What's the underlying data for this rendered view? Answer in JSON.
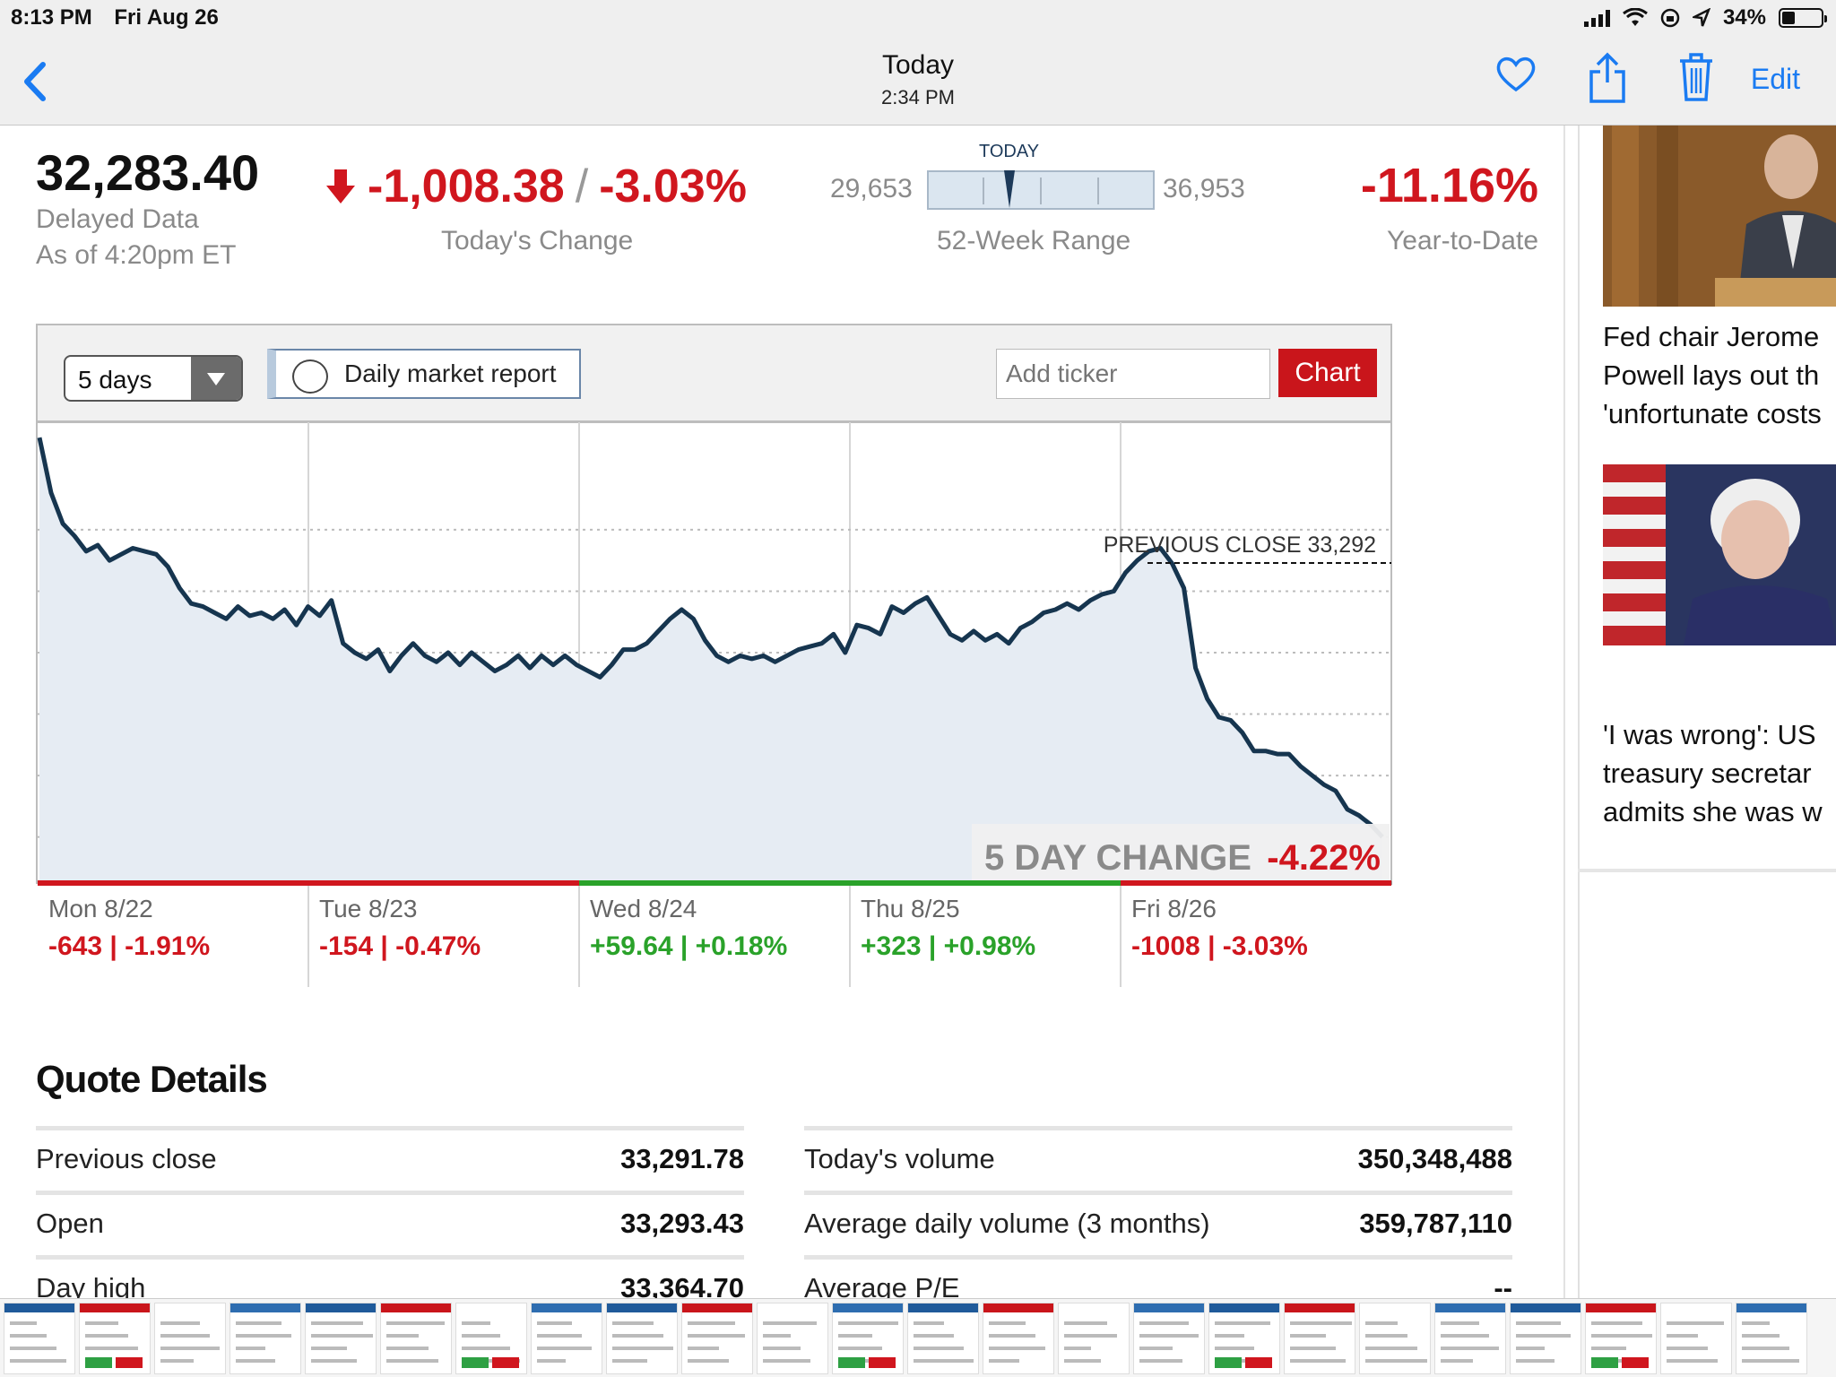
{
  "status_bar": {
    "time": "8:13 PM",
    "date": "Fri Aug 26",
    "battery": "34%"
  },
  "nav": {
    "title": "Today",
    "subtitle": "2:34 PM",
    "edit_label": "Edit"
  },
  "quote": {
    "price": "32,283.40",
    "delayed_label": "Delayed Data",
    "asof_label": "As of 4:20pm ET",
    "change_points": "-1,008.38",
    "change_sep": "/",
    "change_percent": "-3.03%",
    "change_label": "Today's Change",
    "range_low": "29,653",
    "range_high": "36,953",
    "range_today_label": "TODAY",
    "range_label": "52-Week Range",
    "range_today_fraction": 0.36,
    "ytd_value": "-11.16%",
    "ytd_label": "Year-to-Date"
  },
  "toolbar": {
    "period_value": "5 days",
    "report_label": "Daily market report",
    "ticker_placeholder": "Add ticker",
    "chart_button": "Chart"
  },
  "chart_data": {
    "type": "line",
    "y_ticks": [
      "33,400",
      "33,200",
      "33,000",
      "32,800",
      "32,600",
      "32,400"
    ],
    "ylim": [
      32250,
      33750
    ],
    "previous_close_label": "PREVIOUS CLOSE 33,292",
    "previous_close": 33292,
    "five_day_label": "5 DAY CHANGE",
    "five_day_value": "-4.22%",
    "days": [
      {
        "label": "Mon 8/22",
        "change": "-643 | -1.91%",
        "status": "down"
      },
      {
        "label": "Tue 8/23",
        "change": "-154 | -0.47%",
        "status": "down"
      },
      {
        "label": "Wed 8/24",
        "change": "+59.64 | +0.18%",
        "status": "up"
      },
      {
        "label": "Thu 8/25",
        "change": "+323 | +0.98%",
        "status": "up"
      },
      {
        "label": "Fri 8/26",
        "change": "-1008 | -3.03%",
        "status": "down"
      }
    ],
    "series": [
      {
        "values": [
          33700,
          33520,
          33420,
          33380,
          33330,
          33350,
          33300,
          33320,
          33340,
          33330,
          33320,
          33280,
          33210,
          33160,
          33150,
          33130,
          33110,
          33150,
          33120,
          33130,
          33110,
          33140,
          33090,
          33150,
          33120,
          33170,
          33030,
          33000,
          32980,
          33010,
          32940,
          32990,
          33030,
          32990,
          32970,
          33000,
          32960,
          33000,
          32970,
          32940,
          32960,
          32990,
          32950,
          32990,
          32960,
          32990,
          32960,
          32940,
          32920,
          32960,
          33010,
          33010,
          33030,
          33070,
          33110,
          33140,
          33110,
          33040,
          32990,
          32970,
          32990,
          32980,
          32990,
          32970,
          32990,
          33010,
          33020,
          33030,
          33060,
          33000,
          33090,
          33080,
          33060,
          33150,
          33130,
          33160,
          33180,
          33120,
          33060,
          33040,
          33070,
          33040,
          33060,
          33030,
          33080,
          33100,
          33130,
          33140,
          33160,
          33140,
          33170,
          33190,
          33200,
          33260,
          33300,
          33330,
          33340,
          33290,
          33210,
          32950,
          32850,
          32790,
          32780,
          32740,
          32680,
          32680,
          32670,
          32670,
          32630,
          32600,
          32570,
          32550,
          32490,
          32470,
          32440,
          32400
        ]
      }
    ]
  },
  "quote_details": {
    "title": "Quote Details",
    "left": [
      {
        "k": "Previous close",
        "v": "33,291.78"
      },
      {
        "k": "Open",
        "v": "33,293.43"
      },
      {
        "k": "Day high",
        "v": "33,364.70"
      }
    ],
    "right": [
      {
        "k": "Today's volume",
        "v": "350,348,488"
      },
      {
        "k": "Average daily volume (3 months)",
        "v": "359,787,110"
      },
      {
        "k": "Average P/E",
        "v": "--"
      }
    ]
  },
  "news": [
    {
      "lines": [
        "Fed chair Jerome",
        "Powell lays out th",
        "'unfortunate costs"
      ]
    },
    {
      "lines": [
        "'I was wrong': US",
        "treasury secretar",
        "admits she was w"
      ]
    }
  ]
}
